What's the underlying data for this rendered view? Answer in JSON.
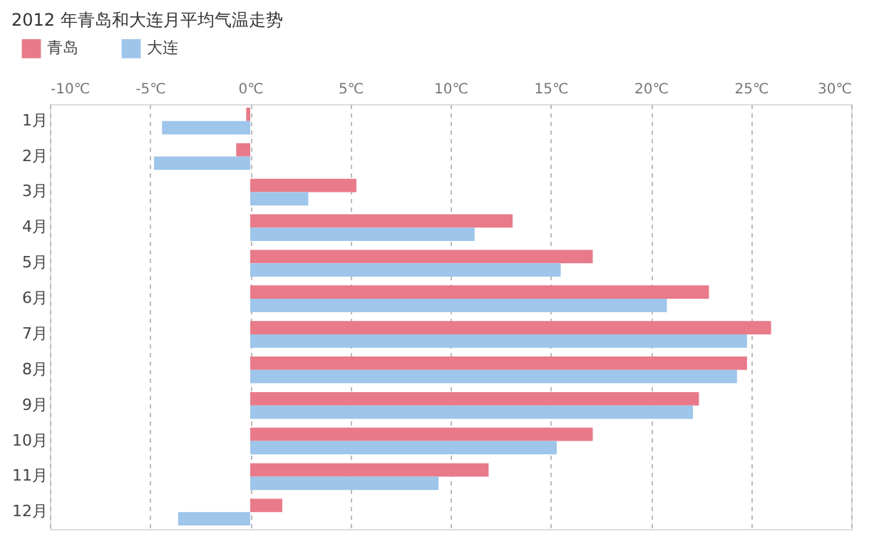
{
  "chart_data": {
    "type": "bar",
    "orientation": "horizontal",
    "title": "2012 年青岛和大连月平均气温走势",
    "categories": [
      "1月",
      "2月",
      "3月",
      "4月",
      "5月",
      "6月",
      "7月",
      "8月",
      "9月",
      "10月",
      "11月",
      "12月"
    ],
    "series": [
      {
        "name": "青岛",
        "color": "#e87a89",
        "values": [
          -0.2,
          -0.7,
          5.3,
          13.1,
          17.1,
          22.9,
          26.0,
          24.8,
          22.4,
          17.1,
          11.9,
          1.6
        ]
      },
      {
        "name": "大连",
        "color": "#9ec5ea",
        "values": [
          -4.4,
          -4.8,
          2.9,
          11.2,
          15.5,
          20.8,
          24.8,
          24.3,
          22.1,
          15.3,
          9.4,
          -3.6
        ]
      }
    ],
    "xlim": [
      -10,
      30
    ],
    "xticks": [
      {
        "value": -10,
        "label": "-10℃"
      },
      {
        "value": -5,
        "label": "-5℃"
      },
      {
        "value": 0,
        "label": "0℃"
      },
      {
        "value": 5,
        "label": "5℃"
      },
      {
        "value": 10,
        "label": "10℃"
      },
      {
        "value": 15,
        "label": "15℃"
      },
      {
        "value": 20,
        "label": "20℃"
      },
      {
        "value": 25,
        "label": "25℃"
      },
      {
        "value": 30,
        "label": "30℃"
      }
    ],
    "grid": "x",
    "legend": "top left"
  }
}
